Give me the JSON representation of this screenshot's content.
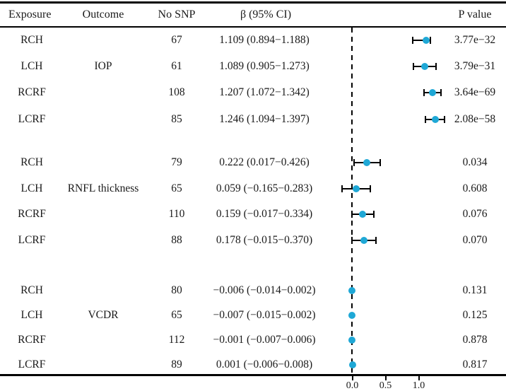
{
  "header": {
    "exposure": "Exposure",
    "outcome": "Outcome",
    "no_snp": "No SNP",
    "beta_ci": "β (95% CI)",
    "p_value": "P value"
  },
  "colors": {
    "dot": "#1fa8d6",
    "line": "#000000"
  },
  "chart_data": {
    "type": "scatter",
    "subtype": "forest-plot",
    "zero_line": 0,
    "zero_line_style": "dashed",
    "x_axis": {
      "tick_values": [
        0.0,
        0.5,
        1.0
      ],
      "tick_labels": [
        "0.0",
        "0.5",
        "1.0"
      ],
      "range_shown": [
        -0.6,
        1.6
      ]
    },
    "groups": [
      {
        "outcome": "IOP",
        "rows": [
          {
            "exposure": "RCH",
            "no_snp": "67",
            "beta": 1.109,
            "ci_low": 0.894,
            "ci_high": 1.188,
            "beta_ci_label": "1.109 (0.894−1.188)",
            "p_value": "3.77e−32"
          },
          {
            "exposure": "LCH",
            "no_snp": "61",
            "beta": 1.089,
            "ci_low": 0.905,
            "ci_high": 1.273,
            "beta_ci_label": "1.089 (0.905−1.273)",
            "p_value": "3.79e−31"
          },
          {
            "exposure": "RCRF",
            "no_snp": "108",
            "beta": 1.207,
            "ci_low": 1.072,
            "ci_high": 1.342,
            "beta_ci_label": "1.207 (1.072−1.342)",
            "p_value": "3.64e−69"
          },
          {
            "exposure": "LCRF",
            "no_snp": "85",
            "beta": 1.246,
            "ci_low": 1.094,
            "ci_high": 1.397,
            "beta_ci_label": "1.246 (1.094−1.397)",
            "p_value": "2.08e−58"
          }
        ]
      },
      {
        "outcome": "RNFL thickness",
        "rows": [
          {
            "exposure": "RCH",
            "no_snp": "79",
            "beta": 0.222,
            "ci_low": 0.017,
            "ci_high": 0.426,
            "beta_ci_label": "0.222 (0.017−0.426)",
            "p_value": "0.034"
          },
          {
            "exposure": "LCH",
            "no_snp": "65",
            "beta": 0.059,
            "ci_low": -0.165,
            "ci_high": 0.283,
            "beta_ci_label": "0.059 (−0.165−0.283)",
            "p_value": "0.608"
          },
          {
            "exposure": "RCRF",
            "no_snp": "110",
            "beta": 0.159,
            "ci_low": -0.017,
            "ci_high": 0.334,
            "beta_ci_label": "0.159 (−0.017−0.334)",
            "p_value": "0.076"
          },
          {
            "exposure": "LCRF",
            "no_snp": "88",
            "beta": 0.178,
            "ci_low": -0.015,
            "ci_high": 0.37,
            "beta_ci_label": "0.178 (−0.015−0.370)",
            "p_value": "0.070"
          }
        ]
      },
      {
        "outcome": "VCDR",
        "rows": [
          {
            "exposure": "RCH",
            "no_snp": "80",
            "beta": -0.006,
            "ci_low": -0.014,
            "ci_high": 0.002,
            "beta_ci_label": "−0.006 (−0.014−0.002)",
            "p_value": "0.131"
          },
          {
            "exposure": "LCH",
            "no_snp": "65",
            "beta": -0.007,
            "ci_low": -0.015,
            "ci_high": 0.002,
            "beta_ci_label": "−0.007 (−0.015−0.002)",
            "p_value": "0.125"
          },
          {
            "exposure": "RCRF",
            "no_snp": "112",
            "beta": -0.001,
            "ci_low": -0.007,
            "ci_high": 0.006,
            "beta_ci_label": "−0.001 (−0.007−0.006)",
            "p_value": "0.878"
          },
          {
            "exposure": "LCRF",
            "no_snp": "89",
            "beta": 0.001,
            "ci_low": -0.006,
            "ci_high": 0.008,
            "beta_ci_label": "0.001 (−0.006−0.008)",
            "p_value": "0.817"
          }
        ]
      }
    ]
  }
}
